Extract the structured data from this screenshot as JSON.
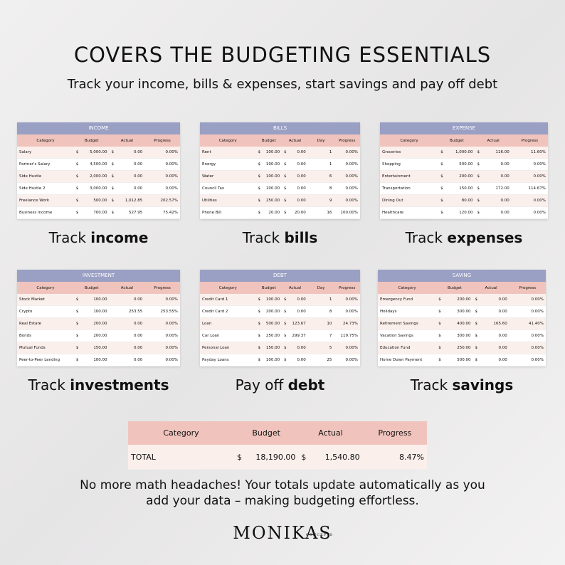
{
  "header": {
    "title": "COVERS THE BUDGETING ESSENTIALS",
    "subtitle": "Track your income, bills & expenses, start savings and pay off debt"
  },
  "tables": [
    {
      "title": "INCOME",
      "headers": [
        "Category",
        "Budget",
        "Actual",
        "Progress"
      ],
      "caption": {
        "prefix": "Track",
        "bold": "income"
      },
      "rows": [
        [
          "Salary",
          {
            "currency": "$",
            "amount": "5,000.00"
          },
          {
            "currency": "$",
            "amount": "0.00"
          },
          "0.00%"
        ],
        [
          "Partner's Salary",
          {
            "currency": "$",
            "amount": "4,500.00"
          },
          {
            "currency": "$",
            "amount": "0.00"
          },
          "0.00%"
        ],
        [
          "Side Hustle",
          {
            "currency": "$",
            "amount": "2,000.00"
          },
          {
            "currency": "$",
            "amount": "0.00"
          },
          "0.00%"
        ],
        [
          "Side Hustle 2",
          {
            "currency": "$",
            "amount": "3,000.00"
          },
          {
            "currency": "$",
            "amount": "0.00"
          },
          "0.00%"
        ],
        [
          "Freelance Work",
          {
            "currency": "$",
            "amount": "500.00"
          },
          {
            "currency": "$",
            "amount": "1,012.85"
          },
          "202.57%"
        ],
        [
          "Business Income",
          {
            "currency": "$",
            "amount": "700.00"
          },
          {
            "currency": "$",
            "amount": "527.95"
          },
          "75.42%"
        ]
      ]
    },
    {
      "title": "BILLS",
      "headers": [
        "Category",
        "Budget",
        "Actual",
        "Day",
        "Progress"
      ],
      "caption": {
        "prefix": "Track",
        "bold": "bills"
      },
      "rows": [
        [
          "Rent",
          {
            "currency": "$",
            "amount": "100.00"
          },
          {
            "currency": "$",
            "amount": "0.00"
          },
          "1",
          "0.00%"
        ],
        [
          "Energy",
          {
            "currency": "$",
            "amount": "100.00"
          },
          {
            "currency": "$",
            "amount": "0.00"
          },
          "1",
          "0.00%"
        ],
        [
          "Water",
          {
            "currency": "$",
            "amount": "100.00"
          },
          {
            "currency": "$",
            "amount": "0.00"
          },
          "6",
          "0.00%"
        ],
        [
          "Council Tax",
          {
            "currency": "$",
            "amount": "100.00"
          },
          {
            "currency": "$",
            "amount": "0.00"
          },
          "8",
          "0.00%"
        ],
        [
          "Utilities",
          {
            "currency": "$",
            "amount": "250.00"
          },
          {
            "currency": "$",
            "amount": "0.00"
          },
          "9",
          "0.00%"
        ],
        [
          "Phone Bill",
          {
            "currency": "$",
            "amount": "20.00"
          },
          {
            "currency": "$",
            "amount": "20.00"
          },
          "16",
          "100.00%"
        ]
      ]
    },
    {
      "title": "EXPENSE",
      "headers": [
        "Category",
        "Budget",
        "Actual",
        "Progress"
      ],
      "caption": {
        "prefix": "Track",
        "bold": "expenses"
      },
      "rows": [
        [
          "Groceries",
          {
            "currency": "$",
            "amount": "1,000.00"
          },
          {
            "currency": "$",
            "amount": "116.00"
          },
          "11.60%"
        ],
        [
          "Shopping",
          {
            "currency": "$",
            "amount": "500.00"
          },
          {
            "currency": "$",
            "amount": "0.00"
          },
          "0.00%"
        ],
        [
          "Entertainment",
          {
            "currency": "$",
            "amount": "200.00"
          },
          {
            "currency": "$",
            "amount": "0.00"
          },
          "0.00%"
        ],
        [
          "Transportation",
          {
            "currency": "$",
            "amount": "150.00"
          },
          {
            "currency": "$",
            "amount": "172.00"
          },
          "114.67%"
        ],
        [
          "Dining Out",
          {
            "currency": "$",
            "amount": "80.00"
          },
          {
            "currency": "$",
            "amount": "0.00"
          },
          "0.00%"
        ],
        [
          "Healthcare",
          {
            "currency": "$",
            "amount": "120.00"
          },
          {
            "currency": "$",
            "amount": "0.00"
          },
          "0.00%"
        ]
      ]
    },
    {
      "title": "INVESTMENT",
      "headers": [
        "Category",
        "Budget",
        "Actual",
        "Progress"
      ],
      "caption": {
        "prefix": "Track",
        "bold": "investments"
      },
      "rows": [
        [
          "Stock Market",
          {
            "currency": "$",
            "amount": "100.00"
          },
          "0.00",
          "0.00%"
        ],
        [
          "Crypto",
          {
            "currency": "$",
            "amount": "100.00"
          },
          "253.55",
          "253.55%"
        ],
        [
          "Real Estate",
          {
            "currency": "$",
            "amount": "200.00"
          },
          "0.00",
          "0.00%"
        ],
        [
          "Bonds",
          {
            "currency": "$",
            "amount": "200.00"
          },
          "0.00",
          "0.00%"
        ],
        [
          "Mutual Funds",
          {
            "currency": "$",
            "amount": "150.00"
          },
          "0.00",
          "0.00%"
        ],
        [
          "Peer-to-Peer Lending",
          {
            "currency": "$",
            "amount": "100.00"
          },
          "0.00",
          "0.00%"
        ]
      ]
    },
    {
      "title": "DEBT",
      "headers": [
        "Category",
        "Budget",
        "Actual",
        "Day",
        "Progress"
      ],
      "caption": {
        "prefix": "Pay off",
        "bold": "debt"
      },
      "rows": [
        [
          "Credit Card 1",
          {
            "currency": "$",
            "amount": "100.00"
          },
          {
            "currency": "$",
            "amount": "0.00"
          },
          "1",
          "0.00%"
        ],
        [
          "Credit Card 2",
          {
            "currency": "$",
            "amount": "200.00"
          },
          {
            "currency": "$",
            "amount": "0.00"
          },
          "8",
          "0.00%"
        ],
        [
          "Loan",
          {
            "currency": "$",
            "amount": "500.00"
          },
          {
            "currency": "$",
            "amount": "123.67"
          },
          "10",
          "24.73%"
        ],
        [
          "Car Loan",
          {
            "currency": "$",
            "amount": "250.00"
          },
          {
            "currency": "$",
            "amount": "299.37"
          },
          "7",
          "119.75%"
        ],
        [
          "Personal Loan",
          {
            "currency": "$",
            "amount": "150.00"
          },
          {
            "currency": "$",
            "amount": "0.00"
          },
          "5",
          "0.00%"
        ],
        [
          "Payday Loans",
          {
            "currency": "$",
            "amount": "100.00"
          },
          {
            "currency": "$",
            "amount": "0.00"
          },
          "25",
          "0.00%"
        ]
      ]
    },
    {
      "title": "SAVING",
      "headers": [
        "Category",
        "Budget",
        "Actual",
        "Progress"
      ],
      "caption": {
        "prefix": "Track",
        "bold": "savings"
      },
      "rows": [
        [
          "Emergency Fund",
          {
            "currency": "$",
            "amount": "200.00"
          },
          {
            "currency": "$",
            "amount": "0.00"
          },
          "0.00%"
        ],
        [
          "Holidays",
          {
            "currency": "$",
            "amount": "300.00"
          },
          {
            "currency": "$",
            "amount": "0.00"
          },
          "0.00%"
        ],
        [
          "Retirement Savings",
          {
            "currency": "$",
            "amount": "400.00"
          },
          {
            "currency": "$",
            "amount": "165.60"
          },
          "41.40%"
        ],
        [
          "Vacation Savings",
          {
            "currency": "$",
            "amount": "300.00"
          },
          {
            "currency": "$",
            "amount": "0.00"
          },
          "0.00%"
        ],
        [
          "Education Fund",
          {
            "currency": "$",
            "amount": "250.00"
          },
          {
            "currency": "$",
            "amount": "0.00"
          },
          "0.00%"
        ],
        [
          "Home Down Payment",
          {
            "currency": "$",
            "amount": "500.00"
          },
          {
            "currency": "$",
            "amount": "0.00"
          },
          "0.00%"
        ]
      ]
    }
  ],
  "total": {
    "headers": [
      "Category",
      "Budget",
      "Actual",
      "Progress"
    ],
    "row": [
      "TOTAL",
      {
        "currency": "$",
        "amount": "18,190.00"
      },
      {
        "currency": "$",
        "amount": "1,540.80"
      },
      "8.47%"
    ]
  },
  "footer": {
    "lines": [
      "No more math headaches!  Your totals update automatically as you",
      "add your data – making budgeting effortless."
    ],
    "logo": "MONIKAS",
    "logo_sub": "CONCEPTS"
  }
}
